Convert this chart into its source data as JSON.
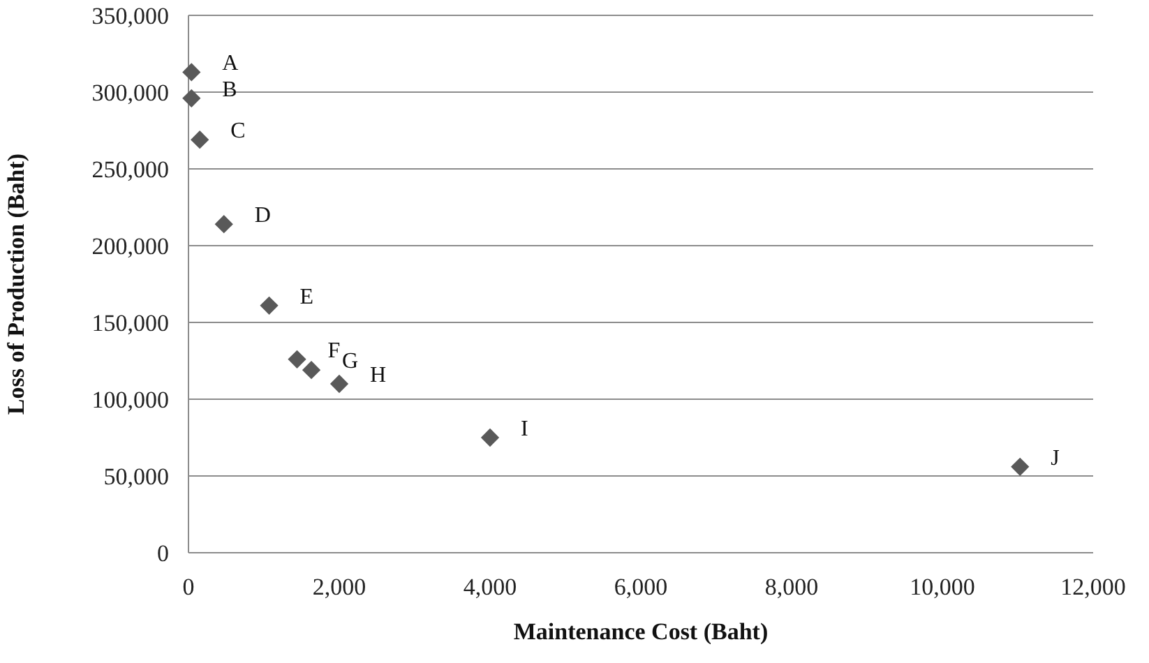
{
  "chart_data": {
    "type": "scatter",
    "xlabel": "Maintenance Cost (Baht)",
    "ylabel": "Loss of Production (Baht)",
    "x": [
      40,
      40,
      150,
      470,
      1070,
      1440,
      1630,
      2000,
      4000,
      11030
    ],
    "values": [
      313000,
      296000,
      269000,
      214000,
      161000,
      126000,
      119000,
      110000,
      75000,
      56000
    ],
    "color": "#595959",
    "marker": "diamond",
    "grid": "y",
    "xlim": [
      0,
      12000
    ],
    "xticks": [
      {
        "value": 0,
        "label": "0"
      },
      {
        "value": 2000,
        "label": "2,000"
      },
      {
        "value": 4000,
        "label": "4,000"
      },
      {
        "value": 6000,
        "label": "6,000"
      },
      {
        "value": 8000,
        "label": "8,000"
      },
      {
        "value": 10000,
        "label": "10,000"
      },
      {
        "value": 12000,
        "label": "12,000"
      }
    ],
    "ylim": [
      0,
      350000
    ],
    "yticks": [
      {
        "value": 0,
        "label": "0"
      },
      {
        "value": 50000,
        "label": "50,000"
      },
      {
        "value": 100000,
        "label": "100,000"
      },
      {
        "value": 150000,
        "label": "150,000"
      },
      {
        "value": 200000,
        "label": "200,000"
      },
      {
        "value": 250000,
        "label": "250,000"
      },
      {
        "value": 300000,
        "label": "300,000"
      },
      {
        "value": 350000,
        "label": "350,000"
      }
    ],
    "annotations": [
      {
        "text": "A",
        "x": 40,
        "y": 313000
      },
      {
        "text": "B",
        "x": 40,
        "y": 296000
      },
      {
        "text": "C",
        "x": 150,
        "y": 269000
      },
      {
        "text": "D",
        "x": 470,
        "y": 214000
      },
      {
        "text": "E",
        "x": 1070,
        "y": 161000
      },
      {
        "text": "F",
        "x": 1440,
        "y": 126000
      },
      {
        "text": "G",
        "x": 1630,
        "y": 119000
      },
      {
        "text": "H",
        "x": 2000,
        "y": 110000
      },
      {
        "text": "I",
        "x": 4000,
        "y": 75000
      },
      {
        "text": "J",
        "x": 11030,
        "y": 56000
      }
    ]
  }
}
